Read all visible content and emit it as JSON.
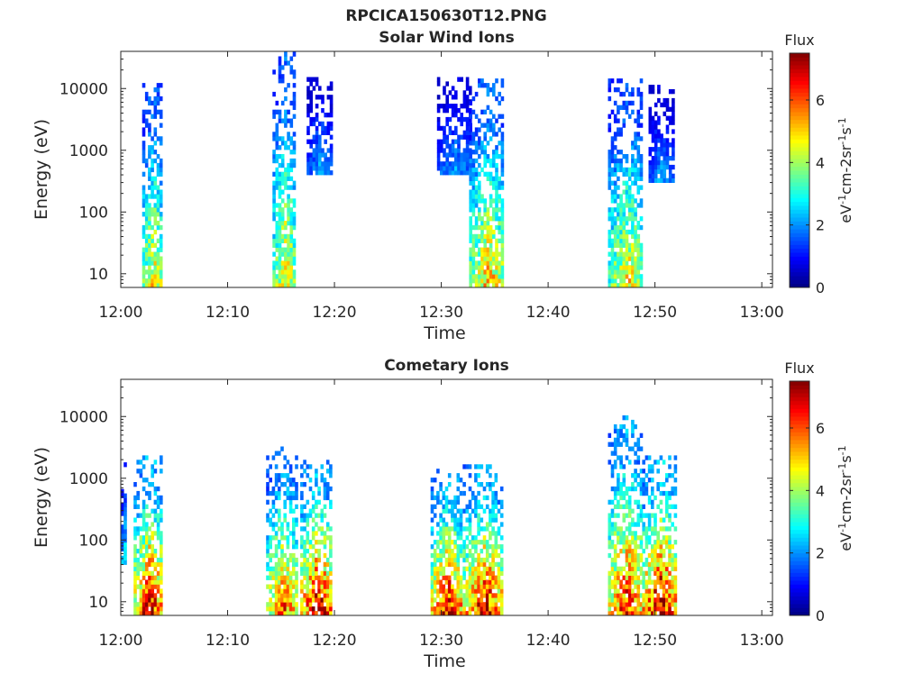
{
  "figure": {
    "title": "RPCICA150630T12.PNG"
  },
  "colormap": {
    "name": "jet",
    "stops": [
      "#00007f",
      "#0000ff",
      "#007fff",
      "#00ffff",
      "#7fff7f",
      "#ffff00",
      "#ff7f00",
      "#ff0000",
      "#7f0000"
    ]
  },
  "chart_data": [
    {
      "type": "heatmap",
      "title": "Solar Wind Ions",
      "xlabel": "Time",
      "ylabel": "Energy (eV)",
      "y_scale": "log",
      "xlim": [
        "12:00",
        "13:01"
      ],
      "ylim": [
        6,
        40000
      ],
      "x_ticks": [
        "12:00",
        "12:10",
        "12:20",
        "12:30",
        "12:40",
        "12:50",
        "13:00"
      ],
      "y_ticks": [
        "10",
        "100",
        "1000",
        "10000"
      ],
      "grid": false,
      "colorbar": {
        "label": "eV-1cm-2sr-1s-1",
        "title": "Flux",
        "range": [
          0,
          7.5
        ],
        "ticks": [
          "0",
          "2",
          "4",
          "6"
        ]
      },
      "bursts": [
        {
          "start_min": 2.0,
          "end_min": 3.8,
          "min_energy_ev": 6,
          "max_energy_ev": 14000,
          "peak_flux": 5.0
        },
        {
          "start_min": 14.2,
          "end_min": 16.2,
          "min_energy_ev": 6,
          "max_energy_ev": 35000,
          "peak_flux": 5.0
        },
        {
          "start_min": 17.4,
          "end_min": 19.6,
          "min_energy_ev": 400,
          "max_energy_ev": 15000,
          "peak_flux": 2.2
        },
        {
          "start_min": 29.6,
          "end_min": 32.8,
          "min_energy_ev": 400,
          "max_energy_ev": 14000,
          "peak_flux": 2.2
        },
        {
          "start_min": 32.6,
          "end_min": 35.8,
          "min_energy_ev": 6,
          "max_energy_ev": 14000,
          "peak_flux": 5.2
        },
        {
          "start_min": 45.6,
          "end_min": 48.8,
          "min_energy_ev": 6,
          "max_energy_ev": 14000,
          "peak_flux": 4.8
        },
        {
          "start_min": 49.4,
          "end_min": 51.6,
          "min_energy_ev": 300,
          "max_energy_ev": 10000,
          "peak_flux": 2.2
        }
      ]
    },
    {
      "type": "heatmap",
      "title": "Cometary Ions",
      "xlabel": "Time",
      "ylabel": "Energy (eV)",
      "y_scale": "log",
      "xlim": [
        "12:00",
        "13:01"
      ],
      "ylim": [
        6,
        40000
      ],
      "x_ticks": [
        "12:00",
        "12:10",
        "12:20",
        "12:30",
        "12:40",
        "12:50",
        "13:00"
      ],
      "y_ticks": [
        "10",
        "100",
        "1000",
        "10000"
      ],
      "grid": false,
      "colorbar": {
        "label": "eV-1cm-2sr-1s-1",
        "title": "Flux",
        "range": [
          0,
          7.5
        ],
        "ticks": [
          "0",
          "2",
          "4",
          "6"
        ]
      },
      "bursts": [
        {
          "start_min": 0.0,
          "end_min": 0.4,
          "min_energy_ev": 40,
          "max_energy_ev": 1800,
          "peak_flux": 3.0
        },
        {
          "start_min": 1.2,
          "end_min": 3.8,
          "min_energy_ev": 6,
          "max_energy_ev": 2000,
          "peak_flux": 7.0
        },
        {
          "start_min": 13.6,
          "end_min": 16.4,
          "min_energy_ev": 6,
          "max_energy_ev": 3000,
          "peak_flux": 6.0
        },
        {
          "start_min": 16.8,
          "end_min": 19.6,
          "min_energy_ev": 6,
          "max_energy_ev": 1800,
          "peak_flux": 7.2
        },
        {
          "start_min": 29.0,
          "end_min": 31.8,
          "min_energy_ev": 6,
          "max_energy_ev": 1300,
          "peak_flux": 7.0
        },
        {
          "start_min": 32.0,
          "end_min": 35.6,
          "min_energy_ev": 6,
          "max_energy_ev": 1500,
          "peak_flux": 7.0
        },
        {
          "start_min": 45.6,
          "end_min": 48.6,
          "min_energy_ev": 6,
          "max_energy_ev": 10000,
          "peak_flux": 6.5
        },
        {
          "start_min": 48.8,
          "end_min": 51.8,
          "min_energy_ev": 6,
          "max_energy_ev": 2000,
          "peak_flux": 7.4
        }
      ]
    }
  ]
}
